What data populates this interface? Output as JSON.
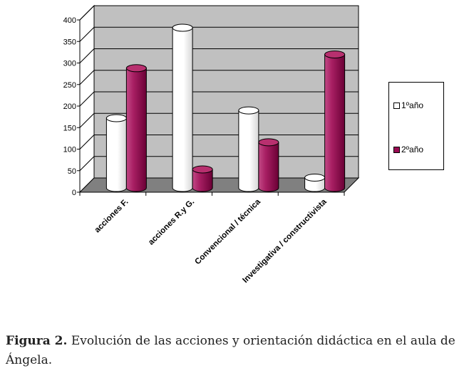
{
  "chart_data": {
    "type": "bar",
    "categories": [
      "acciones F.",
      "acciones R.y G.",
      "Convencional / técnica",
      "Investigativa / constructivista"
    ],
    "series": [
      {
        "name": "1ºaño",
        "values": [
          162,
          372,
          180,
          24
        ],
        "color": "#ffffff"
      },
      {
        "name": "2ºaño",
        "values": [
          278,
          43,
          106,
          310
        ],
        "color": "#990a52"
      }
    ],
    "ylim": [
      0,
      400
    ],
    "yticks": [
      0,
      50,
      100,
      150,
      200,
      250,
      300,
      350,
      400
    ],
    "grid": true,
    "legend": "right"
  },
  "caption": {
    "label": "Figura 2.",
    "text": "Evolución de las acciones y orientación didáctica en el aula de Ángela."
  }
}
